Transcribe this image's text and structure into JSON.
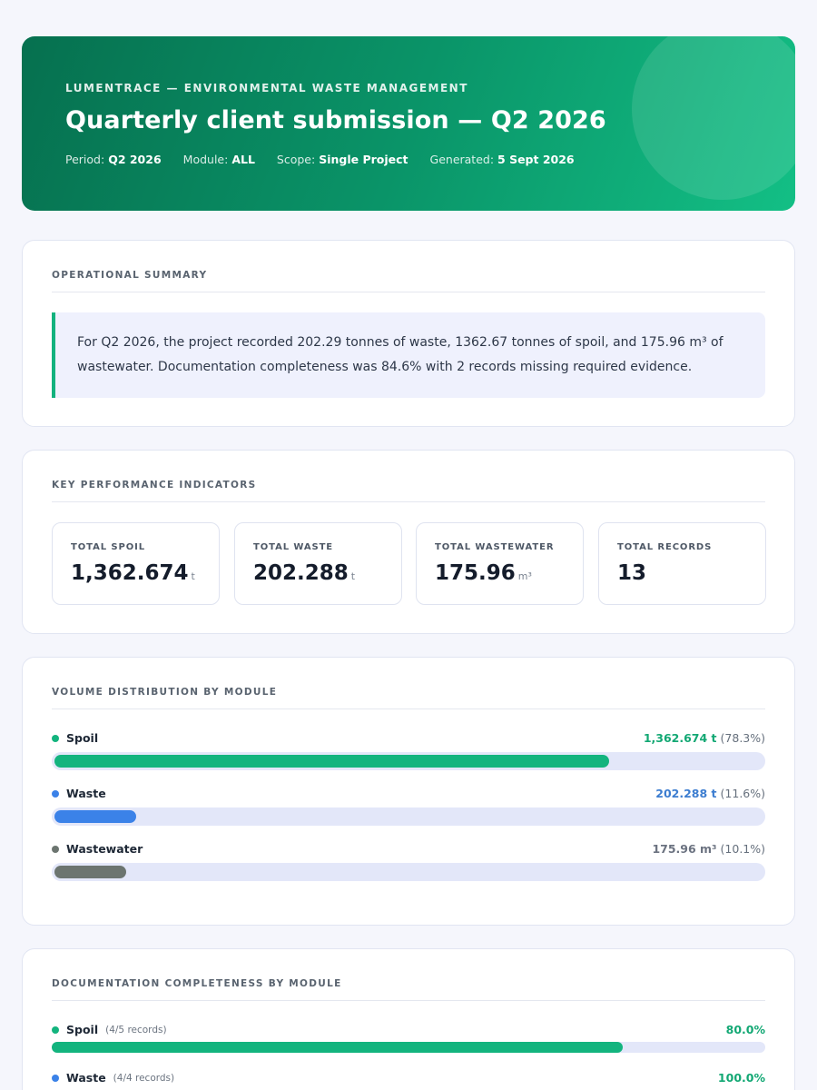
{
  "header": {
    "kicker": "LUMENTRACE — ENVIRONMENTAL WASTE MANAGEMENT",
    "title": "Quarterly client submission — Q2 2026",
    "meta": [
      {
        "label": "Period:",
        "value": "Q2 2026"
      },
      {
        "label": "Module:",
        "value": "ALL"
      },
      {
        "label": "Scope:",
        "value": "Single Project"
      },
      {
        "label": "Generated:",
        "value": "5 Sept 2026"
      }
    ]
  },
  "summary": {
    "heading": "OPERATIONAL SUMMARY",
    "text": "For Q2 2026, the project recorded 202.29 tonnes of waste, 1362.67 tonnes of spoil, and 175.96 m³ of wastewater. Documentation completeness was 84.6% with 2 records missing required evidence."
  },
  "kpis": {
    "heading": "KEY PERFORMANCE INDICATORS",
    "items": [
      {
        "label": "TOTAL SPOIL",
        "value": "1,362.674",
        "unit": "t"
      },
      {
        "label": "TOTAL WASTE",
        "value": "202.288",
        "unit": "t"
      },
      {
        "label": "TOTAL WASTEWATER",
        "value": "175.96",
        "unit": "m³"
      },
      {
        "label": "TOTAL RECORDS",
        "value": "13",
        "unit": ""
      }
    ]
  },
  "distribution": {
    "heading": "VOLUME DISTRIBUTION BY MODULE",
    "items": [
      {
        "name": "Spoil",
        "amount": "1,362.674 t",
        "percent_label": "(78.3%)",
        "share": 0.783,
        "color": "#13b47e"
      },
      {
        "name": "Waste",
        "amount": "202.288 t",
        "percent_label": "(11.6%)",
        "share": 0.116,
        "color": "#3b82e8"
      },
      {
        "name": "Wastewater",
        "amount": "175.96 m³",
        "percent_label": "(10.1%)",
        "share": 0.101,
        "color": "#6c7570"
      }
    ]
  },
  "documentation": {
    "heading": "DOCUMENTATION COMPLETENESS BY MODULE",
    "items": [
      {
        "name": "Spoil",
        "records": "(4/5 records)",
        "percent": "80.0%",
        "completeness": 0.8,
        "color": "#13b47e"
      },
      {
        "name": "Waste",
        "records": "(4/4 records)",
        "percent": "100.0%",
        "completeness": 1.0,
        "color": "#3b82e8"
      }
    ]
  },
  "colors": {
    "accent": "#13b47e",
    "waste": "#3b82e8",
    "wastewater": "#6c7570",
    "amount_waste_text": "#3c7dd0",
    "amount_spoil_text": "#13a874",
    "amount_wastewater_text": "#6b7280"
  }
}
